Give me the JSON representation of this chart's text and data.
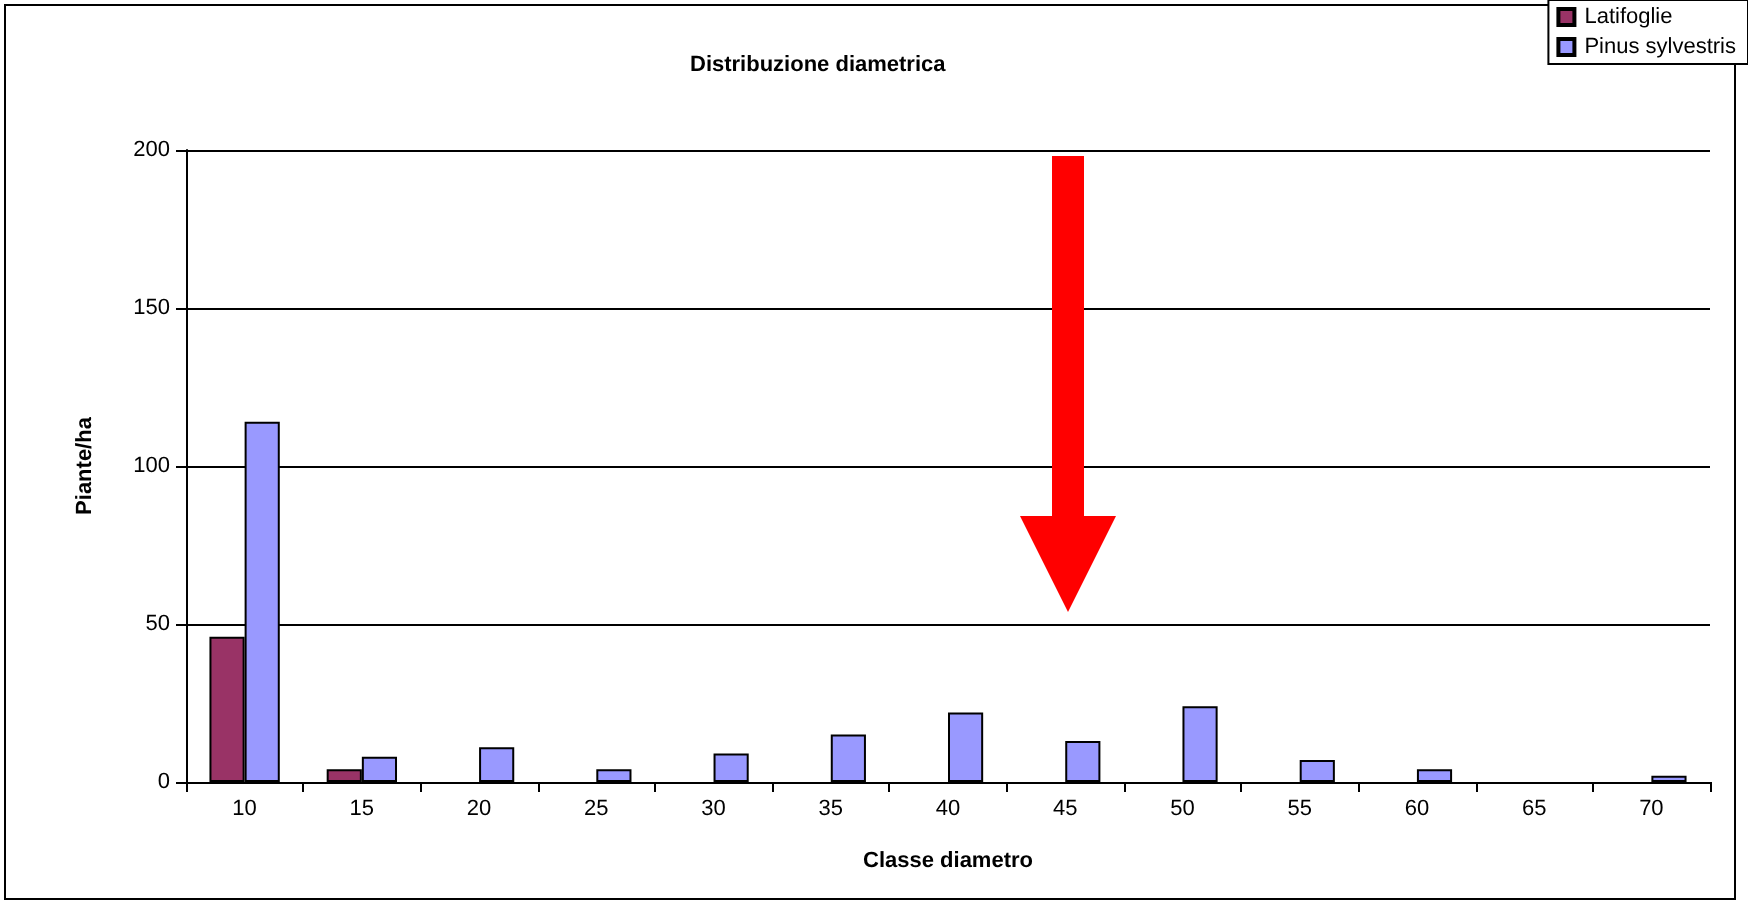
{
  "chart_data": {
    "type": "bar",
    "title": "Distribuzione diametrica",
    "xlabel": "Classe diametro",
    "ylabel": "Piante/ha",
    "categories": [
      "10",
      "15",
      "20",
      "25",
      "30",
      "35",
      "40",
      "45",
      "50",
      "55",
      "60",
      "65",
      "70"
    ],
    "series": [
      {
        "name": "Latifoglie",
        "color": "#993366",
        "values": [
          46,
          4,
          null,
          null,
          null,
          null,
          null,
          null,
          null,
          null,
          null,
          null,
          null
        ]
      },
      {
        "name": "Pinus sylvestris",
        "color": "#9999ff",
        "values": [
          114,
          8,
          11,
          4,
          9,
          15,
          22,
          13,
          24,
          7,
          4,
          null,
          2
        ]
      }
    ],
    "ylim": [
      0,
      200
    ],
    "yticks": [
      0,
      50,
      100,
      150,
      200
    ],
    "grid": "y",
    "legend": "top right"
  }
}
